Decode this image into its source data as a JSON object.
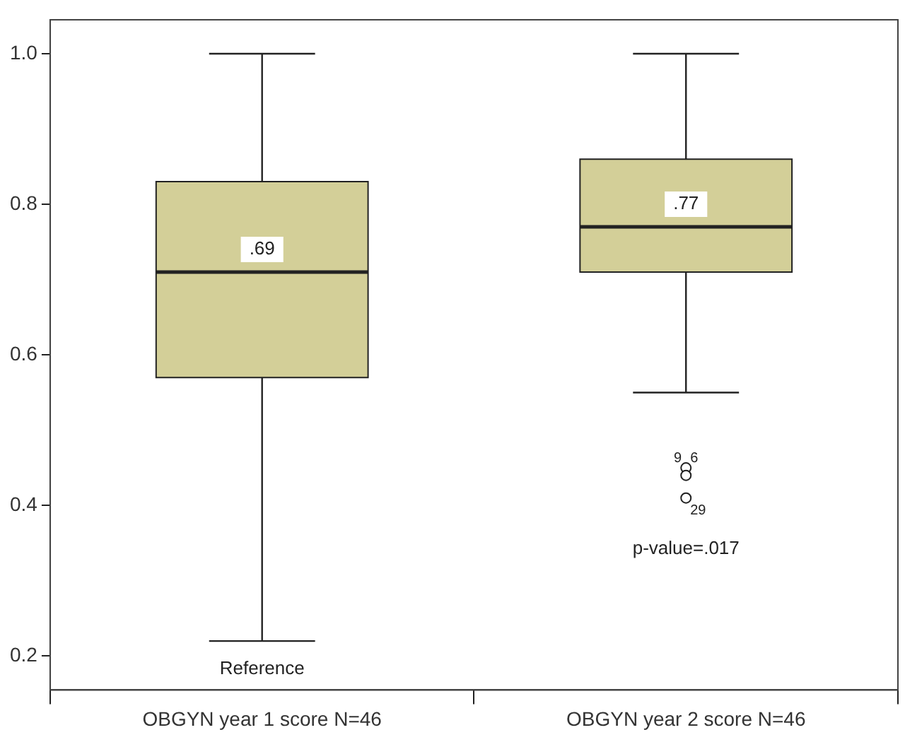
{
  "chart_data": {
    "type": "box",
    "categories": [
      "OBGYN year 1 score N=46",
      "OBGYN year 2 score N=46"
    ],
    "color": "#d3cf98",
    "boxes": [
      {
        "low": 0.22,
        "q1": 0.57,
        "median": 0.71,
        "q3": 0.83,
        "high": 1.0
      },
      {
        "low": 0.55,
        "q1": 0.71,
        "median": 0.77,
        "q3": 0.86,
        "high": 1.0,
        "outliers": [
          0.45,
          0.44,
          0.41
        ]
      }
    ],
    "ylim": [
      0.155,
      1.045
    ],
    "yticks": [
      {
        "value": 0.2,
        "label": "0.2"
      },
      {
        "value": 0.4,
        "label": "0.4"
      },
      {
        "value": 0.6,
        "label": "0.6"
      },
      {
        "value": 0.8,
        "label": "0.8"
      },
      {
        "value": 1.0,
        "label": "1.0"
      }
    ],
    "grid": false,
    "legend": false,
    "annotations": [
      {
        "text": ".69",
        "x": "OBGYN year 1 score N=46",
        "y": 0.74
      },
      {
        "text": ".77",
        "x": "OBGYN year 2 score N=46",
        "y": 0.8
      },
      "Reference",
      "9",
      "6",
      "29",
      "p-value=.017"
    ]
  }
}
